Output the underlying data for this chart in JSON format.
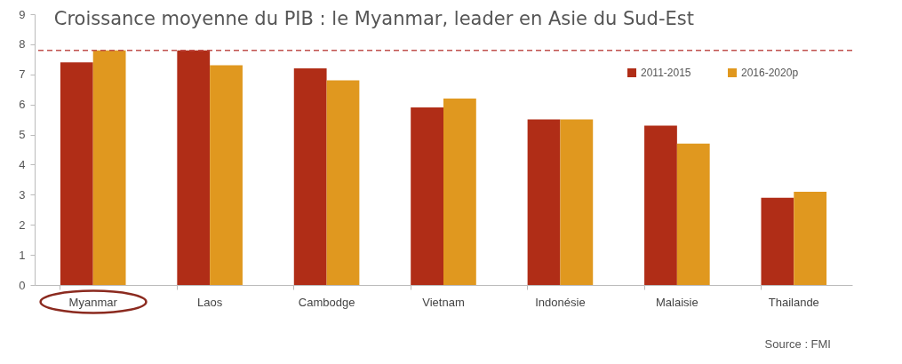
{
  "chart_data": {
    "type": "bar",
    "title": "Croissance moyenne du PIB : le Myanmar, leader en Asie du Sud-Est",
    "categories": [
      "Myanmar",
      "Laos",
      "Cambodge",
      "Vietnam",
      "Indonésie",
      "Malaisie",
      "Thailande"
    ],
    "series": [
      {
        "name": "2011-2015",
        "color": "#b02d17",
        "values": [
          7.4,
          7.8,
          7.2,
          5.9,
          5.5,
          5.3,
          2.9
        ]
      },
      {
        "name": "2016-2020p",
        "color": "#e0981f",
        "values": [
          7.8,
          7.3,
          6.8,
          6.2,
          5.5,
          4.7,
          3.1
        ]
      }
    ],
    "ylim": [
      0,
      9
    ],
    "yticks": [
      0,
      1,
      2,
      3,
      4,
      5,
      6,
      7,
      8,
      9
    ],
    "ref_lines": [
      {
        "axis": "y",
        "value": 7.8,
        "color": "#c0504d",
        "line_style": "dashed"
      }
    ],
    "annotations": [
      "Source : FMI"
    ],
    "grid": false,
    "legend": "top right"
  }
}
